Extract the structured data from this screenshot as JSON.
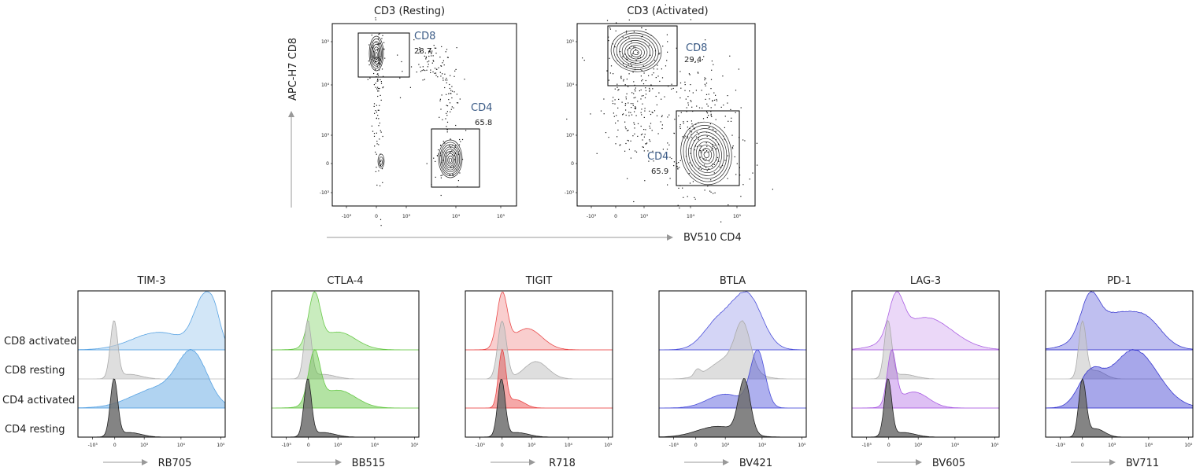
{
  "chart_data": [
    {
      "type": "scatter",
      "title": "CD3 (Resting)",
      "xlabel": "BV510 CD4",
      "ylabel": "APC-H7 CD8",
      "x_ticks": [
        "-10³",
        "0",
        "10³",
        "10⁴",
        "10⁵"
      ],
      "y_ticks": [
        "10⁵",
        "10⁴",
        "10³",
        "0",
        "-10³"
      ],
      "gates": [
        {
          "name": "CD8",
          "percent": "28.7"
        },
        {
          "name": "CD4",
          "percent": "65.8"
        }
      ]
    },
    {
      "type": "scatter",
      "title": "CD3 (Activated)",
      "xlabel": "BV510 CD4",
      "ylabel": "APC-H7 CD8",
      "x_ticks": [
        "-10³",
        "0",
        "10³",
        "10⁴",
        "10⁵"
      ],
      "y_ticks": [
        "10⁵",
        "10⁴",
        "10³",
        "0",
        "-10³"
      ],
      "gates": [
        {
          "name": "CD8",
          "percent": "29.4"
        },
        {
          "name": "CD4",
          "percent": "65.9"
        }
      ]
    },
    {
      "type": "area",
      "row_labels": [
        "CD8 activated",
        "CD8 resting",
        "CD4 activated",
        "CD4 resting"
      ],
      "x_ticks": [
        "-10³",
        "0",
        "10³",
        "10⁴",
        "10⁵"
      ],
      "panels": [
        {
          "title": "TIM-3",
          "xlabel": "RB705",
          "color": "#4a9be0"
        },
        {
          "title": "CTLA-4",
          "xlabel": "BB515",
          "color": "#5cc43a"
        },
        {
          "title": "TIGIT",
          "xlabel": "R718",
          "color": "#e83a3a"
        },
        {
          "title": "BTLA",
          "xlabel": "BV421",
          "color": "#3b3fd6"
        },
        {
          "title": "LAG-3",
          "xlabel": "BV605",
          "color": "#a24fe0"
        },
        {
          "title": "PD-1",
          "xlabel": "BV711",
          "color": "#2a2acc"
        }
      ]
    }
  ]
}
